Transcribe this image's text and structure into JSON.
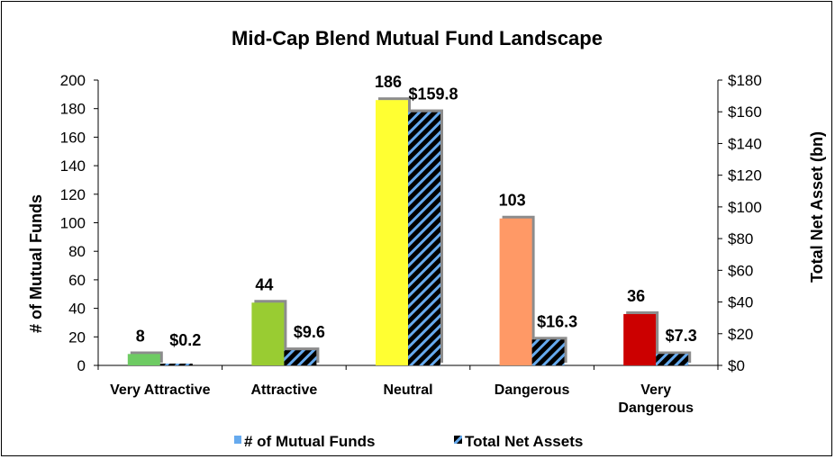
{
  "chart_data": {
    "type": "bar",
    "title": "Mid-Cap Blend Mutual Fund Landscape",
    "categories": [
      [
        "Very Attractive"
      ],
      [
        "Attractive"
      ],
      [
        "Neutral"
      ],
      [
        "Dangerous"
      ],
      [
        "Very",
        "Dangerous"
      ]
    ],
    "ylabel_left": "# of Mutual Funds",
    "ylabel_right": "Total Net Asset (bn)",
    "ylim_left": [
      0,
      200
    ],
    "ylim_right": [
      0,
      180
    ],
    "yticks_left": [
      "0",
      "20",
      "40",
      "60",
      "80",
      "100",
      "120",
      "140",
      "160",
      "180",
      "200"
    ],
    "yticks_right": [
      "$0",
      "$20",
      "$40",
      "$60",
      "$80",
      "$100",
      "$120",
      "$140",
      "$160",
      "$180"
    ],
    "grid": false,
    "legend_position": "bottom",
    "series": [
      {
        "name": "# of Mutual Funds",
        "axis": "left",
        "values": [
          8,
          44,
          186,
          103,
          36
        ],
        "labels": [
          "8",
          "44",
          "186",
          "103",
          "36"
        ],
        "colors": [
          "#6ecb63",
          "#99cc33",
          "#ffff33",
          "#ff9966",
          "#cc0000"
        ],
        "legend_color": "#66aaee"
      },
      {
        "name": "Total Net Assets",
        "axis": "right",
        "values": [
          0.2,
          9.6,
          159.8,
          16.3,
          7.3
        ],
        "labels": [
          "$0.2",
          "$9.6",
          "$159.8",
          "$16.3",
          "$7.3"
        ],
        "fill": "#000000",
        "stripe_color": "#66aaee"
      }
    ]
  }
}
